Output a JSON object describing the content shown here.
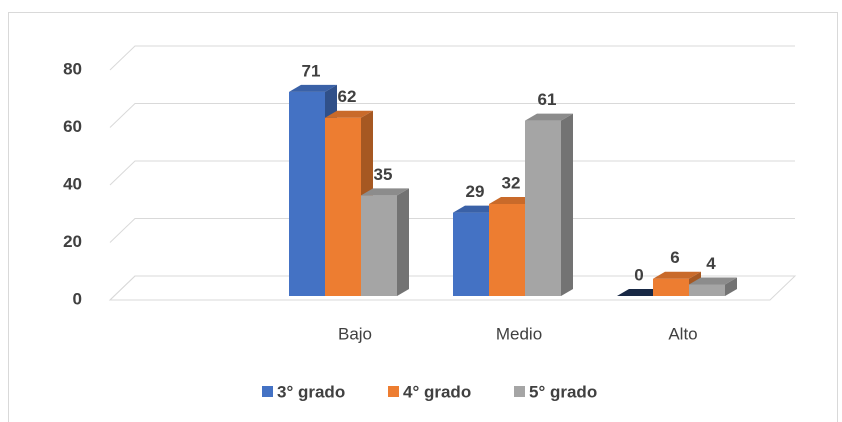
{
  "chart_data": {
    "type": "bar3d",
    "categories": [
      "Bajo",
      "Medio",
      "Alto"
    ],
    "series": [
      {
        "name": "3° grado",
        "color": "#4472c4",
        "values": [
          71,
          29,
          0
        ]
      },
      {
        "name": "4° grado",
        "color": "#ed7d31",
        "values": [
          62,
          32,
          6
        ]
      },
      {
        "name": "5° grado",
        "color": "#a5a5a5",
        "values": [
          35,
          61,
          4
        ]
      }
    ],
    "ylim": [
      0,
      80
    ],
    "yticks": [
      0,
      20,
      40,
      60,
      80
    ],
    "grid": true,
    "legend": "bottom"
  }
}
